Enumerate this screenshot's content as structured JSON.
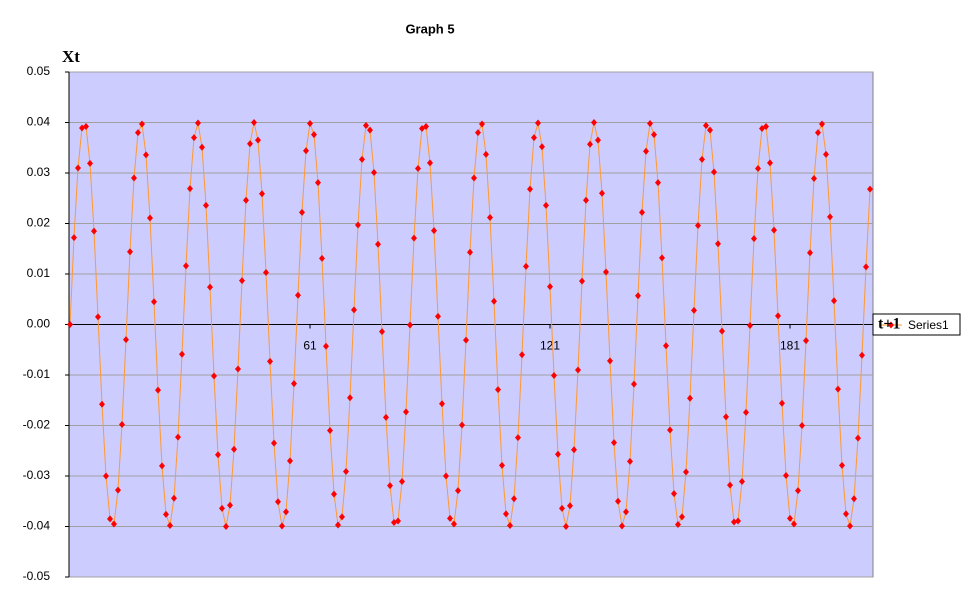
{
  "chart_data": {
    "type": "line",
    "title": "Graph 5",
    "y_label": "Xt",
    "x_label": "t+1",
    "x": [
      1,
      2,
      3,
      4,
      5,
      6,
      7,
      8,
      9,
      10,
      11,
      12,
      13,
      14,
      15,
      16,
      17,
      18,
      19,
      20,
      21,
      22,
      23,
      24,
      25,
      26,
      27,
      28,
      29,
      30,
      31,
      32,
      33,
      34,
      35,
      36,
      37,
      38,
      39,
      40,
      41,
      42,
      43,
      44,
      45,
      46,
      47,
      48,
      49,
      50,
      51,
      52,
      53,
      54,
      55,
      56,
      57,
      58,
      59,
      60,
      61,
      62,
      63,
      64,
      65,
      66,
      67,
      68,
      69,
      70,
      71,
      72,
      73,
      74,
      75,
      76,
      77,
      78,
      79,
      80,
      81,
      82,
      83,
      84,
      85,
      86,
      87,
      88,
      89,
      90,
      91,
      92,
      93,
      94,
      95,
      96,
      97,
      98,
      99,
      100,
      101,
      102,
      103,
      104,
      105,
      106,
      107,
      108,
      109,
      110,
      111,
      112,
      113,
      114,
      115,
      116,
      117,
      118,
      119,
      120,
      121,
      122,
      123,
      124,
      125,
      126,
      127,
      128,
      129,
      130,
      131,
      132,
      133,
      134,
      135,
      136,
      137,
      138,
      139,
      140,
      141,
      142,
      143,
      144,
      145,
      146,
      147,
      148,
      149,
      150,
      151,
      152,
      153,
      154,
      155,
      156,
      157,
      158,
      159,
      160,
      161,
      162,
      163,
      164,
      165,
      166,
      167,
      168,
      169,
      170,
      171,
      172,
      173,
      174,
      175,
      176,
      177,
      178,
      179,
      180,
      181,
      182,
      183,
      184,
      185,
      186,
      187,
      188,
      189,
      190,
      191,
      192,
      193,
      194,
      195,
      196,
      197,
      198,
      199,
      200,
      201
    ],
    "series": [
      {
        "name": "Series1",
        "color": "#ff9933",
        "marker_color": "#ff0000",
        "values": [
          0,
          0.0172,
          0.031,
          0.0389,
          0.0392,
          0.0319,
          0.0185,
          0.0015,
          -0.0158,
          -0.03,
          -0.0385,
          -0.0395,
          -0.0328,
          -0.0198,
          -0.003,
          0.0144,
          0.029,
          0.038,
          0.0397,
          0.0336,
          0.0211,
          0.0045,
          -0.013,
          -0.028,
          -0.0376,
          -0.0398,
          -0.0344,
          -0.0223,
          -0.0059,
          0.0116,
          0.0269,
          0.037,
          0.0399,
          0.0351,
          0.0236,
          0.0074,
          -0.0102,
          -0.0258,
          -0.0364,
          -0.04,
          -0.0358,
          -0.0247,
          -0.0088,
          0.0087,
          0.0246,
          0.0358,
          0.04,
          0.0365,
          0.0259,
          0.0103,
          -0.0073,
          -0.0235,
          -0.0351,
          -0.0399,
          -0.0371,
          -0.027,
          -0.0117,
          0.0058,
          0.0222,
          0.0344,
          0.0398,
          0.0376,
          0.0281,
          0.0131,
          -0.0043,
          -0.021,
          -0.0336,
          -0.0397,
          -0.0381,
          -0.0291,
          -0.0145,
          0.0029,
          0.0197,
          0.0327,
          0.0394,
          0.0385,
          0.0301,
          0.0159,
          -0.0014,
          -0.0184,
          -0.0319,
          -0.0392,
          -0.0389,
          -0.0311,
          -0.0173,
          -0.0001,
          0.0171,
          0.0309,
          0.0388,
          0.0392,
          0.032,
          0.0186,
          0.0016,
          -0.0157,
          -0.03,
          -0.0384,
          -0.0395,
          -0.0329,
          -0.0199,
          -0.0031,
          0.0143,
          0.029,
          0.038,
          0.0397,
          0.0337,
          0.0212,
          0.0046,
          -0.0129,
          -0.0279,
          -0.0375,
          -0.0398,
          -0.0345,
          -0.0224,
          -0.006,
          0.0115,
          0.0268,
          0.037,
          0.0399,
          0.0352,
          0.0236,
          0.0075,
          -0.0101,
          -0.0257,
          -0.0364,
          -0.04,
          -0.0359,
          -0.0248,
          -0.009,
          0.0086,
          0.0246,
          0.0357,
          0.04,
          0.0365,
          0.026,
          0.0104,
          -0.0072,
          -0.0234,
          -0.035,
          -0.0399,
          -0.0371,
          -0.0271,
          -0.0118,
          0.0057,
          0.0222,
          0.0343,
          0.0398,
          0.0376,
          0.0281,
          0.0132,
          -0.0042,
          -0.0209,
          -0.0335,
          -0.0396,
          -0.0381,
          -0.0292,
          -0.0146,
          0.0028,
          0.0196,
          0.0327,
          0.0394,
          0.0385,
          0.0302,
          0.016,
          -0.0013,
          -0.0183,
          -0.0318,
          -0.0391,
          -0.0389,
          -0.0311,
          -0.0174,
          -0.0002,
          0.017,
          0.0309,
          0.0388,
          0.0392,
          0.032,
          0.0187,
          0.0017,
          -0.0156,
          -0.0299,
          -0.0384,
          -0.0395,
          -0.0329,
          -0.02,
          -0.0032,
          0.0142,
          0.0289,
          0.038,
          0.0397,
          0.0337,
          0.0213,
          0.0047,
          -0.0128,
          -0.0279,
          -0.0375,
          -0.0399,
          -0.0345,
          -0.0225,
          -0.0061,
          0.0114,
          0.0268
        ]
      }
    ],
    "xlim": [
      1,
      201
    ],
    "xticks": [
      61,
      121,
      181
    ],
    "ylim": [
      -0.05,
      0.05
    ],
    "yticks": [
      -0.05,
      -0.04,
      -0.03,
      -0.02,
      -0.01,
      {
        "value": 0,
        "label": "0.00"
      },
      0.01,
      0.02,
      0.03,
      0.04,
      0.05
    ],
    "grid": true,
    "plot_background": "#ccccff",
    "legend": "right"
  }
}
